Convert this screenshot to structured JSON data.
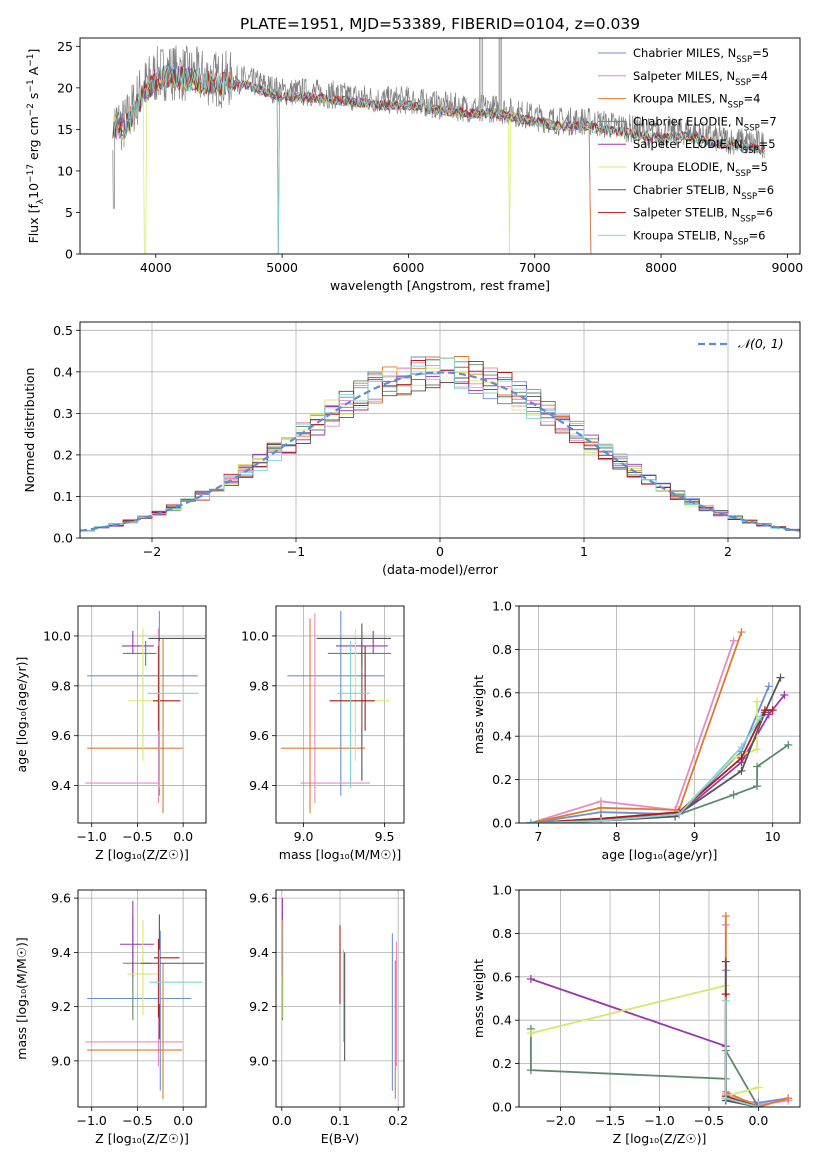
{
  "figure_title": "PLATE=1951, MJD=53389, FIBERID=0104, z=0.039",
  "palette": {
    "Chabrier MILES": "#6b8fd6",
    "Salpeter MILES": "#e88cc0",
    "Kroupa MILES": "#e07a2e",
    "Chabrier ELODIE": "#5c8a6a",
    "Salpeter ELODIE": "#9a37b0",
    "Kroupa ELODIE": "#d8e86a",
    "Chabrier STELIB": "#555555",
    "Salpeter STELIB": "#b01c1c",
    "Kroupa STELIB": "#7fd6d6"
  },
  "chart_data": [
    {
      "id": "spectrum",
      "type": "line",
      "title": "",
      "xlabel": "wavelength [Angstrom, rest frame]",
      "ylabel_parts": [
        "Flux [f",
        "λ",
        "10",
        "−17",
        " erg cm",
        "−2",
        " s",
        "−1",
        " A",
        "−1",
        "]"
      ],
      "xlim": [
        3400,
        9100
      ],
      "ylim": [
        0,
        26
      ],
      "xticks": [
        4000,
        5000,
        6000,
        7000,
        8000,
        9000
      ],
      "yticks": [
        0,
        5,
        10,
        15,
        20,
        25
      ],
      "grid": false,
      "legend_position": "top-right",
      "data_color": "#808080",
      "observed_envelope": {
        "x": [
          3660,
          3750,
          3900,
          4000,
          4100,
          4300,
          4500,
          4700,
          4900,
          5000,
          5200,
          5500,
          5800,
          6000,
          6200,
          6500,
          6700,
          7000,
          7200,
          7400,
          7600,
          7800,
          8000,
          8200,
          8400,
          8600,
          8800
        ],
        "y": [
          16,
          15.5,
          20,
          21.5,
          22,
          21.5,
          21,
          21,
          20,
          19.5,
          19.5,
          19,
          18.5,
          18.5,
          18,
          17.5,
          17.5,
          16.5,
          16,
          16,
          15.5,
          15,
          14.5,
          14.8,
          14,
          13.6,
          13.2
        ]
      },
      "legend": [
        {
          "model": "Chabrier MILES",
          "n": "5"
        },
        {
          "model": "Salpeter MILES",
          "n": "4"
        },
        {
          "model": "Kroupa MILES",
          "n": "4"
        },
        {
          "model": "Chabrier ELODIE",
          "n": "7"
        },
        {
          "model": "Salpeter ELODIE",
          "n": "5"
        },
        {
          "model": "Kroupa ELODIE",
          "n": "5"
        },
        {
          "model": "Chabrier STELIB",
          "n": "6"
        },
        {
          "model": "Salpeter STELIB",
          "n": "6"
        },
        {
          "model": "Kroupa STELIB",
          "n": "6"
        }
      ],
      "legend_sub": "SSP"
    },
    {
      "id": "residuals",
      "type": "histogram",
      "title": "",
      "xlabel": "(data-model)/error",
      "ylabel": "Normed distribution",
      "xlim": [
        -2.5,
        2.5
      ],
      "ylim": [
        0,
        0.52
      ],
      "xticks": [
        -2,
        -1,
        0,
        1,
        2
      ],
      "yticks": [
        0.0,
        0.1,
        0.2,
        0.3,
        0.4,
        0.5
      ],
      "grid": true,
      "legend": "𝒩(0, 1)",
      "legend_position": "top-right",
      "bin_width": 0.1,
      "gaussian": {
        "mean": 0,
        "sigma": 1,
        "color": "#5a8fd6"
      }
    },
    {
      "id": "age-vs-Z",
      "type": "errorbar",
      "xlabel": "Z [log₁₀(Z/Z☉)]",
      "ylabel": "age  [log₁₀(age/yr)]",
      "xlim": [
        -1.15,
        0.25
      ],
      "ylim": [
        9.25,
        10.12
      ],
      "xticks": [
        -1.0,
        -0.5,
        0.0
      ],
      "yticks": [
        9.4,
        9.6,
        9.8,
        10.0
      ],
      "grid": true,
      "points": [
        {
          "model": "Chabrier MILES",
          "x": -0.26,
          "xerr": [
            0.79,
            0.42
          ],
          "y": 9.84,
          "yerr": [
            0.48,
            0.26
          ]
        },
        {
          "model": "Salpeter MILES",
          "x": -0.27,
          "xerr": [
            0.8,
            0.0
          ],
          "y": 9.41,
          "yerr": [
            0.08,
            0.62
          ]
        },
        {
          "model": "Kroupa MILES",
          "x": -0.22,
          "xerr": [
            0.83,
            0.22
          ],
          "y": 9.55,
          "yerr": [
            0.26,
            0.44
          ]
        },
        {
          "model": "Chabrier ELODIE",
          "x": -0.41,
          "xerr": [
            0.25,
            0.12
          ],
          "y": 9.93,
          "yerr": [
            0.05,
            0.05
          ]
        },
        {
          "model": "Salpeter ELODIE",
          "x": -0.55,
          "xerr": [
            0.12,
            0.23
          ],
          "y": 9.96,
          "yerr": [
            0.03,
            0.06
          ]
        },
        {
          "model": "Kroupa ELODIE",
          "x": -0.44,
          "xerr": [
            0.16,
            0.18
          ],
          "y": 9.74,
          "yerr": [
            0.24,
            0.29
          ]
        },
        {
          "model": "Chabrier STELIB",
          "x": -0.26,
          "xerr": [
            0.12,
            0.5
          ],
          "y": 9.99,
          "yerr": [
            0.57,
            0.0
          ]
        },
        {
          "model": "Salpeter STELIB",
          "x": -0.27,
          "xerr": [
            0.06,
            0.24
          ],
          "y": 9.74,
          "yerr": [
            0.12,
            0.22
          ]
        },
        {
          "model": "Kroupa STELIB",
          "x": -0.26,
          "xerr": [
            0.13,
            0.43
          ],
          "y": 9.77,
          "yerr": [
            0.38,
            0.21
          ]
        }
      ]
    },
    {
      "id": "age-vs-mass",
      "type": "errorbar",
      "xlabel": "mass [log₁₀(M/M☉)]",
      "ylabel": "",
      "xlim": [
        8.83,
        9.62
      ],
      "ylim": [
        9.25,
        10.12
      ],
      "xticks": [
        9.0,
        9.5
      ],
      "yticks": [
        9.4,
        9.6,
        9.8,
        10.0
      ],
      "grid": true,
      "points": [
        {
          "model": "Chabrier MILES",
          "x": 9.23,
          "xerr": [
            0.33,
            0.27
          ],
          "y": 9.84,
          "yerr": [
            0.48,
            0.26
          ]
        },
        {
          "model": "Salpeter MILES",
          "x": 9.07,
          "xerr": [
            0.09,
            0.34
          ],
          "y": 9.41,
          "yerr": [
            0.08,
            0.68
          ]
        },
        {
          "model": "Kroupa MILES",
          "x": 9.04,
          "xerr": [
            0.18,
            0.34
          ],
          "y": 9.55,
          "yerr": [
            0.26,
            0.52
          ]
        },
        {
          "model": "Chabrier ELODIE",
          "x": 9.36,
          "xerr": [
            0.21,
            0.18
          ],
          "y": 9.93,
          "yerr": [
            0.05,
            0.05
          ]
        },
        {
          "model": "Salpeter ELODIE",
          "x": 9.43,
          "xerr": [
            0.23,
            0.09
          ],
          "y": 9.96,
          "yerr": [
            0.03,
            0.06
          ]
        },
        {
          "model": "Kroupa ELODIE",
          "x": 9.32,
          "xerr": [
            0.15,
            0.21
          ],
          "y": 9.74,
          "yerr": [
            0.24,
            0.29
          ]
        },
        {
          "model": "Chabrier STELIB",
          "x": 9.36,
          "xerr": [
            0.28,
            0.18
          ],
          "y": 9.99,
          "yerr": [
            0.57,
            0.06
          ]
        },
        {
          "model": "Salpeter STELIB",
          "x": 9.38,
          "xerr": [
            0.22,
            0.06
          ],
          "y": 9.74,
          "yerr": [
            0.12,
            0.22
          ]
        },
        {
          "model": "Kroupa STELIB",
          "x": 9.29,
          "xerr": [
            0.08,
            0.12
          ],
          "y": 9.77,
          "yerr": [
            0.38,
            0.21
          ]
        }
      ]
    },
    {
      "id": "massweight-vs-age",
      "type": "line",
      "xlabel": "age  [log₁₀(age/yr)]",
      "ylabel": "mass weight",
      "xlim": [
        6.75,
        10.35
      ],
      "ylim": [
        0,
        1.0
      ],
      "xticks": [
        7,
        8,
        9,
        10
      ],
      "yticks": [
        0.0,
        0.2,
        0.4,
        0.6,
        0.8,
        1.0
      ],
      "grid": true,
      "series": [
        {
          "model": "Chabrier MILES",
          "x": [
            6.9,
            7.8,
            8.8,
            9.6,
            9.95
          ],
          "y": [
            0.0,
            0.05,
            0.04,
            0.33,
            0.63
          ]
        },
        {
          "model": "Salpeter MILES",
          "x": [
            6.9,
            7.8,
            8.75,
            9.5
          ],
          "y": [
            0.0,
            0.1,
            0.06,
            0.84
          ]
        },
        {
          "model": "Kroupa MILES",
          "x": [
            6.9,
            7.8,
            8.8,
            9.6
          ],
          "y": [
            0.0,
            0.07,
            0.06,
            0.88
          ]
        },
        {
          "model": "Chabrier ELODIE",
          "x": [
            6.9,
            7.8,
            8.8,
            9.5,
            9.8,
            9.8,
            10.2
          ],
          "y": [
            0.0,
            0.02,
            0.04,
            0.13,
            0.17,
            0.26,
            0.36
          ]
        },
        {
          "model": "Salpeter ELODIE",
          "x": [
            6.9,
            7.8,
            8.8,
            9.6,
            9.95,
            10.15
          ],
          "y": [
            0.0,
            0.02,
            0.04,
            0.28,
            0.5,
            0.59
          ]
        },
        {
          "model": "Kroupa ELODIE",
          "x": [
            6.9,
            7.8,
            8.8,
            9.5,
            9.8,
            9.8
          ],
          "y": [
            0.0,
            0.02,
            0.05,
            0.3,
            0.34,
            0.56
          ]
        },
        {
          "model": "Chabrier STELIB",
          "x": [
            6.9,
            7.8,
            8.75,
            9.6,
            9.9,
            10.1
          ],
          "y": [
            0.0,
            0.01,
            0.03,
            0.24,
            0.51,
            0.67
          ]
        },
        {
          "model": "Salpeter STELIB",
          "x": [
            6.9,
            7.8,
            8.8,
            9.6,
            9.9,
            10.0
          ],
          "y": [
            0.0,
            0.02,
            0.05,
            0.3,
            0.52,
            0.52
          ]
        },
        {
          "model": "Kroupa STELIB",
          "x": [
            6.9,
            7.8,
            8.8,
            9.6,
            9.85
          ],
          "y": [
            0.0,
            0.01,
            0.04,
            0.35,
            0.49
          ]
        }
      ]
    },
    {
      "id": "mass-vs-Z",
      "type": "errorbar",
      "xlabel": "Z [log₁₀(Z/Z☉)]",
      "ylabel": "mass [log₁₀(M/M☉)]",
      "xlim": [
        -1.15,
        0.25
      ],
      "ylim": [
        8.83,
        9.63
      ],
      "xticks": [
        -1.0,
        -0.5,
        0.0
      ],
      "yticks": [
        9.0,
        9.2,
        9.4,
        9.6
      ],
      "grid": true,
      "points": [
        {
          "model": "Chabrier MILES",
          "x": -0.25,
          "xerr": [
            0.8,
            0.34
          ],
          "y": 9.23,
          "yerr": [
            0.34,
            0.25
          ]
        },
        {
          "model": "Salpeter MILES",
          "x": -0.27,
          "xerr": [
            0.8,
            0.27
          ],
          "y": 9.07,
          "yerr": [
            0.09,
            0.34
          ]
        },
        {
          "model": "Kroupa MILES",
          "x": -0.22,
          "xerr": [
            0.83,
            0.21
          ],
          "y": 9.04,
          "yerr": [
            0.18,
            0.32
          ]
        },
        {
          "model": "Chabrier ELODIE",
          "x": -0.55,
          "xerr": [
            0.11,
            0.2
          ],
          "y": 9.36,
          "yerr": [
            0.21,
            0.17
          ]
        },
        {
          "model": "Salpeter ELODIE",
          "x": -0.55,
          "xerr": [
            0.14,
            0.23
          ],
          "y": 9.43,
          "yerr": [
            0.12,
            0.16
          ]
        },
        {
          "model": "Kroupa ELODIE",
          "x": -0.44,
          "xerr": [
            0.17,
            0.17
          ],
          "y": 9.32,
          "yerr": [
            0.15,
            0.2
          ]
        },
        {
          "model": "Chabrier STELIB",
          "x": -0.26,
          "xerr": [
            0.2,
            0.49
          ],
          "y": 9.36,
          "yerr": [
            0.28,
            0.18
          ]
        },
        {
          "model": "Salpeter STELIB",
          "x": -0.27,
          "xerr": [
            0.05,
            0.23
          ],
          "y": 9.38,
          "yerr": [
            0.22,
            0.07
          ]
        },
        {
          "model": "Kroupa STELIB",
          "x": -0.26,
          "xerr": [
            0.11,
            0.47
          ],
          "y": 9.29,
          "yerr": [
            0.08,
            0.12
          ]
        }
      ]
    },
    {
      "id": "mass-vs-ebv",
      "type": "errorbar",
      "xlabel": "E(B-V)",
      "ylabel": "",
      "xlim": [
        -0.01,
        0.21
      ],
      "ylim": [
        8.83,
        9.63
      ],
      "xticks": [
        0.0,
        0.1,
        0.2
      ],
      "yticks": [
        9.0,
        9.2,
        9.4,
        9.6
      ],
      "grid": true,
      "points": [
        {
          "model": "Chabrier MILES",
          "x": 0.19,
          "xerr": [
            0,
            0
          ],
          "y": 9.23,
          "yerr": [
            0.34,
            0.24
          ]
        },
        {
          "model": "Salpeter MILES",
          "x": 0.197,
          "xerr": [
            0,
            0
          ],
          "y": 9.07,
          "yerr": [
            0.09,
            0.37
          ]
        },
        {
          "model": "Kroupa MILES",
          "x": 0.195,
          "xerr": [
            0,
            0
          ],
          "y": 9.04,
          "yerr": [
            0.18,
            0.33
          ]
        },
        {
          "model": "Chabrier ELODIE",
          "x": 0.001,
          "xerr": [
            0,
            0
          ],
          "y": 9.36,
          "yerr": [
            0.21,
            0.17
          ]
        },
        {
          "model": "Salpeter ELODIE",
          "x": 0.001,
          "xerr": [
            0,
            0
          ],
          "y": 9.43,
          "yerr": [
            0.12,
            0.17
          ]
        },
        {
          "model": "Kroupa ELODIE",
          "x": 0.002,
          "xerr": [
            0,
            0
          ],
          "y": 9.32,
          "yerr": [
            0.16,
            0.2
          ]
        },
        {
          "model": "Chabrier STELIB",
          "x": 0.108,
          "xerr": [
            0,
            0
          ],
          "y": 9.2,
          "yerr": [
            0.2,
            0.2
          ]
        },
        {
          "model": "Salpeter STELIB",
          "x": 0.1,
          "xerr": [
            0,
            0
          ],
          "y": 9.38,
          "yerr": [
            0.17,
            0.12
          ]
        },
        {
          "model": "Kroupa STELIB",
          "x": 0.106,
          "xerr": [
            0,
            0
          ],
          "y": 9.24,
          "yerr": [
            0.17,
            0.17
          ]
        }
      ]
    },
    {
      "id": "massweight-vs-Z",
      "type": "line",
      "xlabel": "Z [log₁₀(Z/Z☉)]",
      "ylabel": "mass weight",
      "xlim": [
        -2.42,
        0.42
      ],
      "ylim": [
        0,
        1.0
      ],
      "xticks": [
        -2.0,
        -1.5,
        -1.0,
        -0.5,
        0.0
      ],
      "yticks": [
        0.0,
        0.2,
        0.4,
        0.6,
        0.8,
        1.0
      ],
      "grid": true,
      "series": [
        {
          "model": "Chabrier MILES",
          "x": [
            -0.33,
            -0.33,
            0.0,
            0.3
          ],
          "y": [
            0.63,
            0.03,
            0.02,
            0.04
          ]
        },
        {
          "model": "Salpeter MILES",
          "x": [
            -0.33,
            -0.33,
            0.0,
            0.3
          ],
          "y": [
            0.84,
            0.06,
            0.01,
            0.03
          ]
        },
        {
          "model": "Kroupa MILES",
          "x": [
            -0.33,
            -0.33,
            0.0,
            0.3
          ],
          "y": [
            0.88,
            0.07,
            0.0,
            0.04
          ]
        },
        {
          "model": "Chabrier ELODIE",
          "x": [
            -2.3,
            -2.3,
            -0.33,
            -0.33,
            0.0
          ],
          "y": [
            0.36,
            0.17,
            0.13,
            0.26,
            0.0
          ]
        },
        {
          "model": "Salpeter ELODIE",
          "x": [
            -2.3,
            -0.33,
            -0.33,
            0.0
          ],
          "y": [
            0.59,
            0.28,
            0.04,
            0.0
          ]
        },
        {
          "model": "Kroupa ELODIE",
          "x": [
            -2.3,
            -0.33,
            -0.33,
            0.0
          ],
          "y": [
            0.34,
            0.56,
            0.05,
            0.09
          ]
        },
        {
          "model": "Chabrier STELIB",
          "x": [
            -0.33,
            -0.33,
            0.0
          ],
          "y": [
            0.67,
            0.03,
            0.0
          ]
        },
        {
          "model": "Salpeter STELIB",
          "x": [
            -0.33,
            -0.33,
            0.0
          ],
          "y": [
            0.52,
            0.05,
            0.0
          ]
        },
        {
          "model": "Kroupa STELIB",
          "x": [
            -0.33,
            -0.33,
            0.0
          ],
          "y": [
            0.49,
            0.04,
            0.0
          ]
        }
      ]
    }
  ]
}
